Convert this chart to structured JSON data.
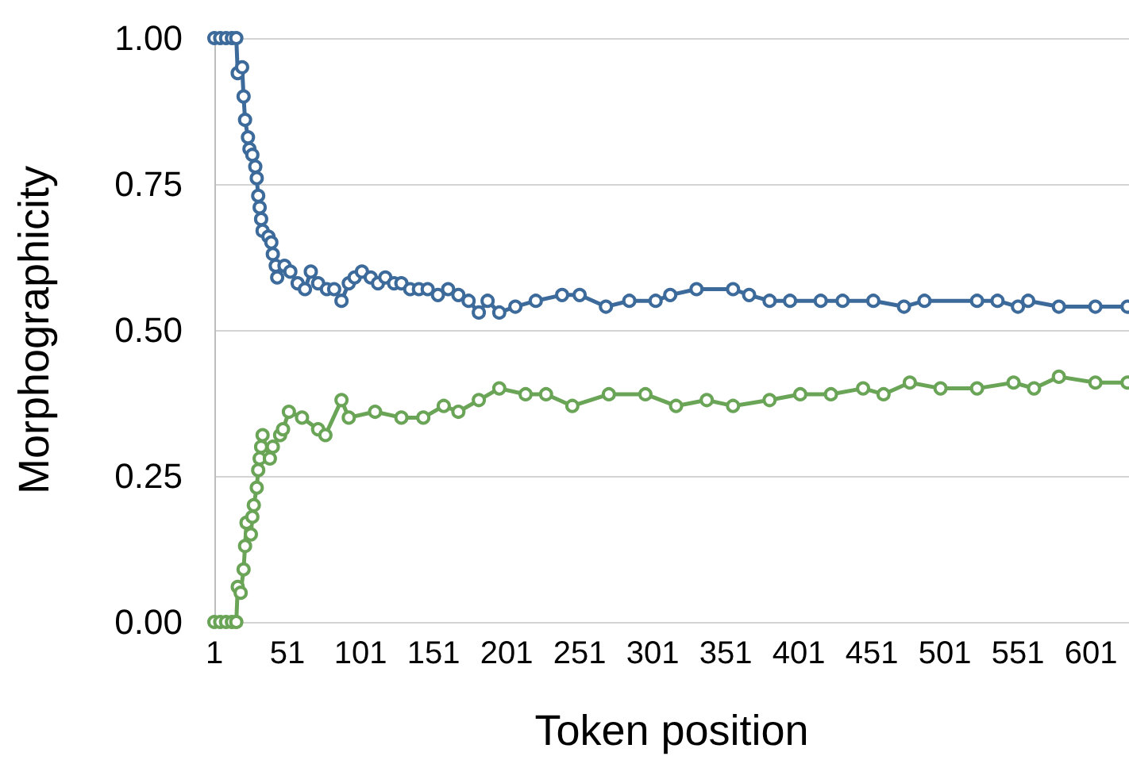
{
  "chart_data": {
    "type": "line",
    "xlabel": "Token position",
    "ylabel": "Morphographicity",
    "xlim": [
      1,
      627
    ],
    "xticks": [
      1,
      51,
      101,
      151,
      201,
      251,
      301,
      351,
      401,
      451,
      501,
      551,
      601
    ],
    "ylim": [
      0,
      1
    ],
    "yticks": [
      {
        "value": 0,
        "label": "0.00"
      },
      {
        "value": 0.25,
        "label": "0.25"
      },
      {
        "value": 0.5,
        "label": "0.50"
      },
      {
        "value": 0.75,
        "label": "0.75"
      },
      {
        "value": 1,
        "label": "1.00"
      }
    ],
    "grid": "y",
    "marker": "circle",
    "line_style": "solid",
    "series": [
      {
        "color": "#3c6a9b",
        "x": [
          1,
          5,
          9,
          13,
          16,
          17,
          20,
          21,
          22,
          24,
          25,
          27,
          29,
          30,
          31,
          32,
          33,
          34,
          38,
          40,
          41,
          43,
          44,
          49,
          53,
          58,
          63,
          67,
          72,
          78,
          83,
          88,
          93,
          97,
          102,
          108,
          113,
          118,
          124,
          129,
          135,
          141,
          147,
          154,
          161,
          168,
          175,
          182,
          188,
          196,
          207,
          221,
          239,
          251,
          269,
          285,
          303,
          313,
          331,
          356,
          367,
          381,
          395,
          416,
          431,
          452,
          473,
          487,
          523,
          537,
          551,
          558,
          579,
          604,
          626
        ],
        "values": [
          1,
          1,
          1,
          1,
          1,
          0.94,
          0.95,
          0.9,
          0.86,
          0.83,
          0.81,
          0.8,
          0.78,
          0.76,
          0.73,
          0.71,
          0.69,
          0.67,
          0.66,
          0.65,
          0.63,
          0.61,
          0.59,
          0.61,
          0.6,
          0.58,
          0.57,
          0.6,
          0.58,
          0.57,
          0.57,
          0.55,
          0.58,
          0.59,
          0.6,
          0.59,
          0.58,
          0.59,
          0.58,
          0.58,
          0.57,
          0.57,
          0.57,
          0.56,
          0.57,
          0.56,
          0.55,
          0.53,
          0.55,
          0.53,
          0.54,
          0.55,
          0.56,
          0.56,
          0.54,
          0.55,
          0.55,
          0.56,
          0.57,
          0.57,
          0.56,
          0.55,
          0.55,
          0.55,
          0.55,
          0.55,
          0.54,
          0.55,
          0.55,
          0.55,
          0.54,
          0.55,
          0.54,
          0.54,
          0.54
        ]
      },
      {
        "color": "#6aa457",
        "x": [
          1,
          5,
          9,
          13,
          16,
          17,
          19,
          21,
          22,
          23,
          26,
          27,
          28,
          30,
          31,
          32,
          33,
          34,
          39,
          41,
          46,
          48,
          52,
          61,
          72,
          77,
          88,
          93,
          111,
          129,
          144,
          158,
          168,
          182,
          196,
          214,
          228,
          246,
          271,
          296,
          317,
          338,
          356,
          381,
          402,
          423,
          445,
          459,
          477,
          498,
          523,
          548,
          562,
          579,
          604,
          626
        ],
        "values": [
          0,
          0,
          0,
          0,
          0,
          0.06,
          0.05,
          0.09,
          0.13,
          0.17,
          0.15,
          0.18,
          0.2,
          0.23,
          0.26,
          0.28,
          0.3,
          0.32,
          0.28,
          0.3,
          0.32,
          0.33,
          0.36,
          0.35,
          0.33,
          0.32,
          0.38,
          0.35,
          0.36,
          0.35,
          0.35,
          0.37,
          0.36,
          0.38,
          0.4,
          0.39,
          0.39,
          0.37,
          0.39,
          0.39,
          0.37,
          0.38,
          0.37,
          0.38,
          0.39,
          0.39,
          0.4,
          0.39,
          0.41,
          0.4,
          0.4,
          0.41,
          0.4,
          0.42,
          0.41,
          0.41
        ]
      }
    ]
  }
}
